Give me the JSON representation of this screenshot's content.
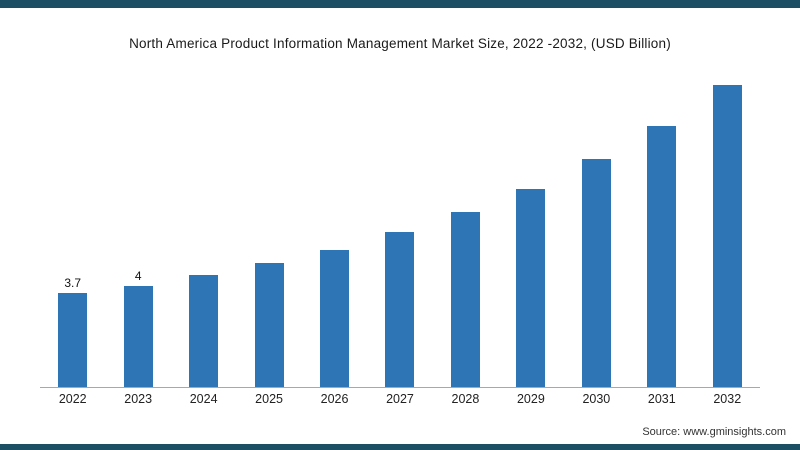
{
  "page": {
    "title": "North America Product Information Management Market Size, 2022 -2032, (USD Billion)",
    "source_label": "Source:",
    "source_site": "www.gminsights.com"
  },
  "colors": {
    "bar": "#2e75b6",
    "accent_strip": "#1c4f63",
    "axis": "#a8a8a8"
  },
  "chart_data": {
    "type": "bar",
    "title": "North America Product Information Management Market Size, 2022 -2032, (USD Billion)",
    "categories": [
      "2022",
      "2023",
      "2024",
      "2025",
      "2026",
      "2027",
      "2028",
      "2029",
      "2030",
      "2031",
      "2032"
    ],
    "values": [
      3.7,
      4,
      4.4,
      4.9,
      5.4,
      6.1,
      6.9,
      7.8,
      9,
      10.3,
      11.9
    ],
    "data_labels": [
      "3.7",
      "4",
      "",
      "",
      "",
      "",
      "",
      "",
      "",
      "",
      ""
    ],
    "xlabel": "",
    "ylabel": "",
    "ylim": [
      0,
      12.5
    ],
    "grid": false,
    "legend": "none"
  }
}
